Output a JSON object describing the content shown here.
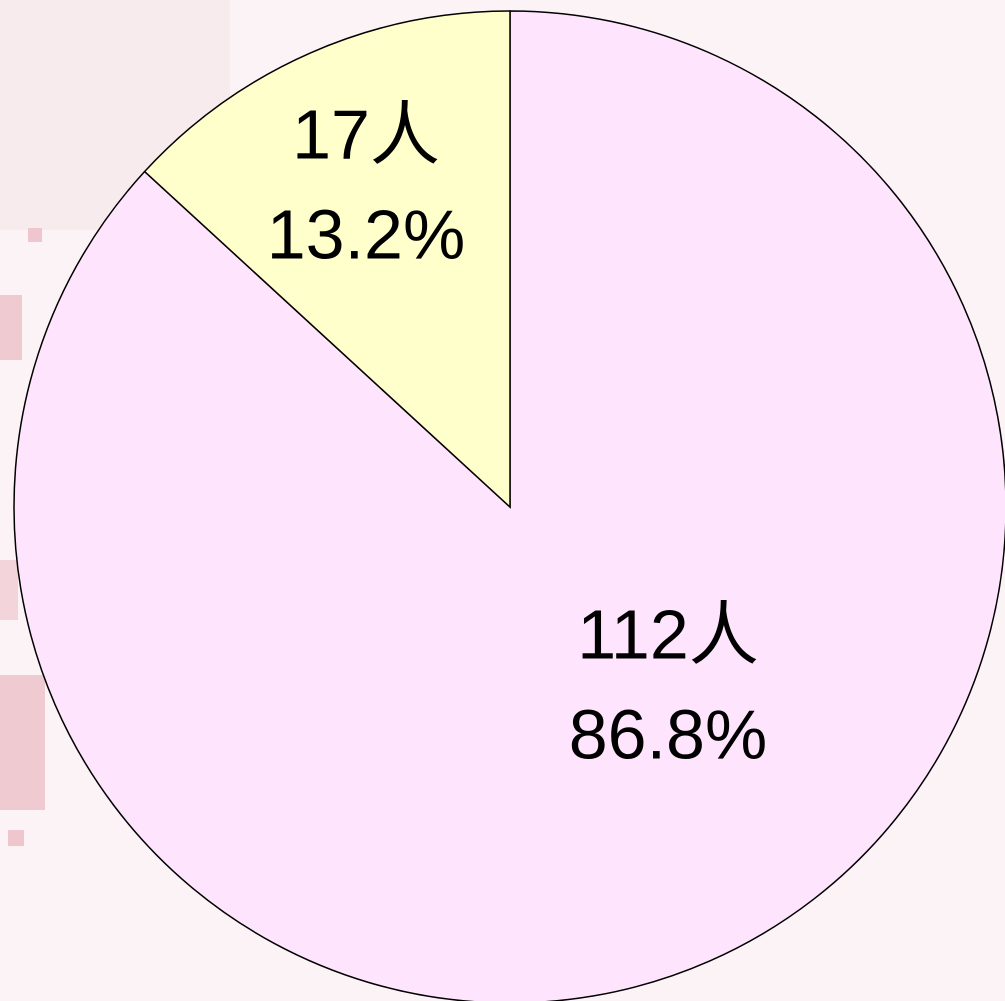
{
  "chart_data": {
    "type": "pie",
    "values": [
      112,
      17
    ],
    "value_labels": [
      "112人",
      "17人"
    ],
    "percentages": [
      86.8,
      13.2
    ],
    "percentage_labels": [
      "86.8%",
      "13.2%"
    ],
    "colors": [
      "#ffe4fe",
      "#ffffcc"
    ]
  }
}
